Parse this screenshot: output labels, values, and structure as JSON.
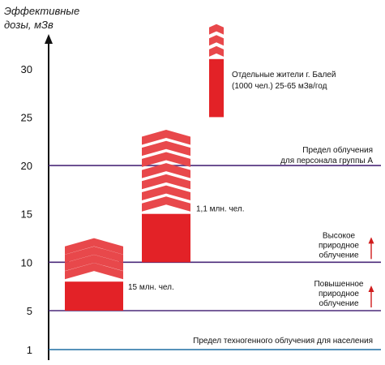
{
  "chart_data": {
    "type": "bar",
    "ylabel_lines": [
      "Эффективные",
      "дозы, мЗв"
    ],
    "y_ticks": [
      1,
      5,
      10,
      15,
      20,
      25,
      30
    ],
    "y_scale_note": "axis is linear from 5 to 30; 1 is placed separately near the bottom",
    "bars": [
      {
        "id": "bar1",
        "solid_range": [
          5,
          8
        ],
        "chevron_range": [
          8,
          12.5
        ],
        "label": "15 млн. чел."
      },
      {
        "id": "bar2",
        "solid_range": [
          10,
          15
        ],
        "chevron_range": [
          15,
          24
        ],
        "label": "1,1 млн. чел."
      },
      {
        "id": "bar3",
        "solid_range": [
          25,
          31
        ],
        "chevron_range": [
          31,
          35
        ],
        "label_lines": [
          "Отдельные жители г. Балей",
          "(1000 чел.) 25-65 мЗв/год"
        ]
      }
    ],
    "reference_lines": [
      {
        "id": "line-techno",
        "y": 1,
        "label_lines": [
          "Предел техногенного облучения для населения"
        ],
        "color": "#1f6fa3"
      },
      {
        "id": "line-raised",
        "y": 5,
        "label_lines": [
          "Повышенное",
          "природное",
          "облучение"
        ],
        "color": "#4b2a7a",
        "arrow": true
      },
      {
        "id": "line-high",
        "y": 10,
        "label_lines": [
          "Высокое",
          "природное",
          "облучение"
        ],
        "color": "#4b2a7a",
        "arrow": true
      },
      {
        "id": "line-groupA",
        "y": 20,
        "label_lines": [
          "Предел облучения",
          "для персонала группы А"
        ],
        "color": "#4b2a7a"
      }
    ],
    "colors": {
      "bar": "#e32227",
      "chevron": "#e8484b",
      "arrow": "#d01c1c",
      "axis": "#111111"
    }
  }
}
